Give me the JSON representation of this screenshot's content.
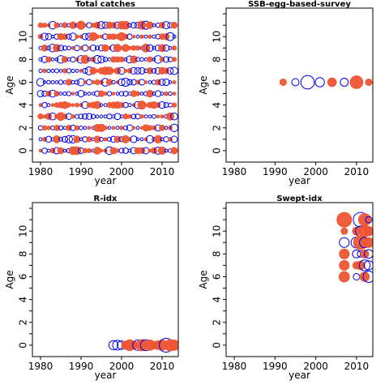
{
  "chart_data": [
    {
      "type": "bubble",
      "title": "Total catches",
      "xlabel": "year",
      "ylabel": "Age",
      "xlim": [
        1978,
        2014
      ],
      "ylim": [
        -1,
        12.5
      ],
      "xticks": [
        "1980",
        "1990",
        "2000",
        "2010"
      ],
      "yticks": [
        "0",
        "2",
        "4",
        "6",
        "8",
        "10"
      ],
      "grid": false,
      "note": "bubble residual grid: one point for every age 0-11 and every year 1980-2013",
      "colors": {
        "positive": "#ee5533",
        "negative": "#0000ee"
      },
      "ages": [
        0,
        1,
        2,
        3,
        4,
        5,
        6,
        7,
        8,
        9,
        10,
        11
      ],
      "year_start": 1980,
      "year_end": 2013,
      "points": []
    },
    {
      "type": "bubble",
      "title": "SSB-egg-based-survey",
      "xlabel": "year",
      "ylabel": "Age",
      "xlim": [
        1978,
        2014
      ],
      "ylim": [
        -1,
        12.5
      ],
      "xticks": [
        "1980",
        "1990",
        "2000",
        "2010"
      ],
      "yticks": [
        "0",
        "2",
        "4",
        "6",
        "8",
        "10"
      ],
      "grid": false,
      "colors": {
        "positive": "#ee5533",
        "negative": "#0000ee"
      },
      "points": [
        {
          "year": 1992,
          "age": 6,
          "size": 0.2,
          "sign": "pos"
        },
        {
          "year": 1995,
          "age": 6,
          "size": 0.25,
          "sign": "neg"
        },
        {
          "year": 1998,
          "age": 6,
          "size": 0.85,
          "sign": "neg"
        },
        {
          "year": 2001,
          "age": 6,
          "size": 0.4,
          "sign": "neg"
        },
        {
          "year": 2004,
          "age": 6,
          "size": 0.35,
          "sign": "pos"
        },
        {
          "year": 2007,
          "age": 6,
          "size": 0.3,
          "sign": "neg"
        },
        {
          "year": 2010,
          "age": 6,
          "size": 0.75,
          "sign": "pos"
        },
        {
          "year": 2013,
          "age": 6,
          "size": 0.2,
          "sign": "pos"
        }
      ]
    },
    {
      "type": "bubble",
      "title": "R-idx",
      "xlabel": "year",
      "ylabel": "Age",
      "xlim": [
        1978,
        2014
      ],
      "ylim": [
        -1,
        12.5
      ],
      "xticks": [
        "1980",
        "1990",
        "2000",
        "2010"
      ],
      "yticks": [
        "0",
        "2",
        "4",
        "6",
        "8",
        "10"
      ],
      "grid": false,
      "colors": {
        "positive": "#ee5533",
        "negative": "#0000ee"
      },
      "points": [
        {
          "year": 1998,
          "age": 0,
          "size": 0.4,
          "sign": "neg"
        },
        {
          "year": 1999,
          "age": 0,
          "size": 0.45,
          "sign": "neg"
        },
        {
          "year": 2000,
          "age": 0,
          "size": 0.35,
          "sign": "neg"
        },
        {
          "year": 2001,
          "age": 0,
          "size": 0.3,
          "sign": "pos"
        },
        {
          "year": 2002,
          "age": 0,
          "size": 0.55,
          "sign": "pos"
        },
        {
          "year": 2003,
          "age": 0,
          "size": 0.3,
          "sign": "pos"
        },
        {
          "year": 2004,
          "age": 0,
          "size": 0.5,
          "sign": "neg"
        },
        {
          "year": 2005,
          "age": 0,
          "size": 0.6,
          "sign": "pos"
        },
        {
          "year": 2006,
          "age": 0,
          "size": 0.55,
          "sign": "neg"
        },
        {
          "year": 2007,
          "age": 0,
          "size": 0.5,
          "sign": "pos"
        },
        {
          "year": 2008,
          "age": 0,
          "size": 0.25,
          "sign": "pos"
        },
        {
          "year": 2009,
          "age": 0,
          "size": 0.35,
          "sign": "pos"
        },
        {
          "year": 2010,
          "age": 0,
          "size": 0.5,
          "sign": "pos"
        },
        {
          "year": 2011,
          "age": 0,
          "size": 0.9,
          "sign": "neg"
        },
        {
          "year": 2012,
          "age": 0,
          "size": 0.6,
          "sign": "pos"
        },
        {
          "year": 2013,
          "age": 0,
          "size": 0.5,
          "sign": "pos"
        }
      ]
    },
    {
      "type": "bubble",
      "title": "Swept-idx",
      "xlabel": "year",
      "ylabel": "Age",
      "xlim": [
        1978,
        2014
      ],
      "ylim": [
        -1,
        12.5
      ],
      "xticks": [
        "1980",
        "1990",
        "2000",
        "2010"
      ],
      "yticks": [
        "0",
        "2",
        "4",
        "6",
        "8",
        "10"
      ],
      "grid": false,
      "colors": {
        "positive": "#ee5533",
        "negative": "#0000ee"
      },
      "points": [
        {
          "year": 2007,
          "age": 11,
          "size": 1.0,
          "sign": "pos"
        },
        {
          "year": 2011,
          "age": 11,
          "size": 1.0,
          "sign": "neg"
        },
        {
          "year": 2012,
          "age": 11,
          "size": 0.7,
          "sign": "pos"
        },
        {
          "year": 2013,
          "age": 11,
          "size": 0.2,
          "sign": "neg"
        },
        {
          "year": 2007,
          "age": 10,
          "size": 0.2,
          "sign": "pos"
        },
        {
          "year": 2010,
          "age": 10,
          "size": 0.3,
          "sign": "pos"
        },
        {
          "year": 2011,
          "age": 10,
          "size": 0.5,
          "sign": "neg"
        },
        {
          "year": 2012,
          "age": 10,
          "size": 0.6,
          "sign": "pos"
        },
        {
          "year": 2013,
          "age": 10,
          "size": 0.4,
          "sign": "pos"
        },
        {
          "year": 2007,
          "age": 9,
          "size": 0.45,
          "sign": "neg"
        },
        {
          "year": 2010,
          "age": 9,
          "size": 0.55,
          "sign": "neg"
        },
        {
          "year": 2011,
          "age": 9,
          "size": 0.9,
          "sign": "pos"
        },
        {
          "year": 2012,
          "age": 9,
          "size": 0.5,
          "sign": "neg"
        },
        {
          "year": 2013,
          "age": 9,
          "size": 0.45,
          "sign": "pos"
        },
        {
          "year": 2007,
          "age": 8,
          "size": 0.45,
          "sign": "pos"
        },
        {
          "year": 2010,
          "age": 8,
          "size": 0.3,
          "sign": "neg"
        },
        {
          "year": 2011,
          "age": 8,
          "size": 0.2,
          "sign": "neg"
        },
        {
          "year": 2012,
          "age": 8,
          "size": 0.3,
          "sign": "pos"
        },
        {
          "year": 2013,
          "age": 8,
          "size": 0.35,
          "sign": "neg"
        },
        {
          "year": 2007,
          "age": 7,
          "size": 0.45,
          "sign": "pos"
        },
        {
          "year": 2010,
          "age": 7,
          "size": 0.25,
          "sign": "pos"
        },
        {
          "year": 2011,
          "age": 7,
          "size": 0.35,
          "sign": "pos"
        },
        {
          "year": 2012,
          "age": 7,
          "size": 0.55,
          "sign": "neg"
        },
        {
          "year": 2013,
          "age": 7,
          "size": 0.4,
          "sign": "neg"
        },
        {
          "year": 2007,
          "age": 6,
          "size": 0.5,
          "sign": "pos"
        },
        {
          "year": 2010,
          "age": 6,
          "size": 0.2,
          "sign": "neg"
        },
        {
          "year": 2012,
          "age": 6,
          "size": 0.4,
          "sign": "pos"
        },
        {
          "year": 2013,
          "age": 6,
          "size": 0.6,
          "sign": "neg"
        }
      ]
    }
  ]
}
